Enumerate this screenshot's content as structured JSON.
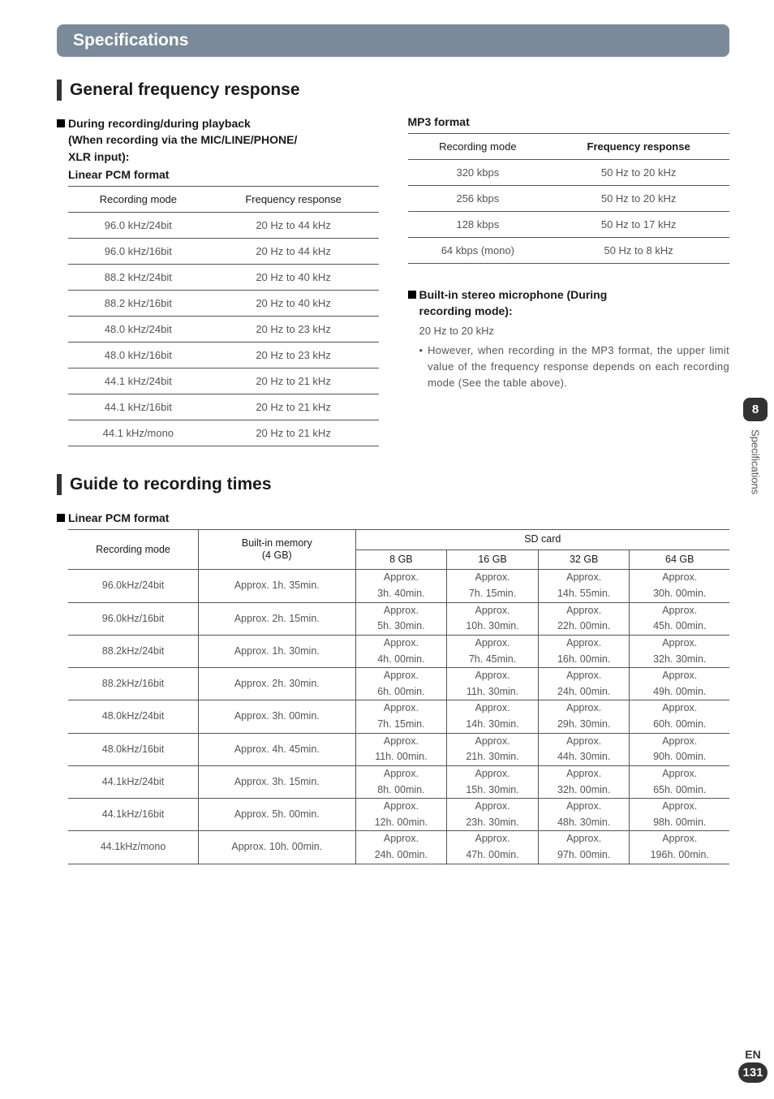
{
  "chapter": {
    "title": "Specifications"
  },
  "side": {
    "num": "8",
    "label": "Specifications"
  },
  "footer": {
    "lang": "EN",
    "page": "131"
  },
  "section1": {
    "title": "General frequency response",
    "left": {
      "heading_lines": [
        "During recording/during playback",
        "(When recording via the MIC/LINE/PHONE/",
        "XLR input):"
      ],
      "sub_title": "Linear PCM format",
      "table": {
        "headers": [
          "Recording mode",
          "Frequency response"
        ],
        "rows": [
          [
            "96.0 kHz/24bit",
            "20 Hz to 44 kHz"
          ],
          [
            "96.0 kHz/16bit",
            "20 Hz to 44 kHz"
          ],
          [
            "88.2 kHz/24bit",
            "20 Hz to 40 kHz"
          ],
          [
            "88.2 kHz/16bit",
            "20 Hz to 40 kHz"
          ],
          [
            "48.0 kHz/24bit",
            "20 Hz to 23 kHz"
          ],
          [
            "48.0 kHz/16bit",
            "20 Hz to 23 kHz"
          ],
          [
            "44.1 kHz/24bit",
            "20 Hz to 21 kHz"
          ],
          [
            "44.1 kHz/16bit",
            "20 Hz to 21 kHz"
          ],
          [
            "44.1 kHz/mono",
            "20 Hz to 21 kHz"
          ]
        ]
      }
    },
    "right": {
      "mp3_title": "MP3 format",
      "mp3_table": {
        "headers": [
          "Recording mode",
          "Frequency response"
        ],
        "rows": [
          [
            "320 kbps",
            "50 Hz to 20 kHz"
          ],
          [
            "256 kbps",
            "50 Hz to 20 kHz"
          ],
          [
            "128 kbps",
            "50 Hz to 17 kHz"
          ],
          [
            "64 kbps (mono)",
            "50 Hz to 8 kHz"
          ]
        ]
      },
      "mic_heading_lines": [
        "Built-in stereo microphone (During",
        "recording mode):"
      ],
      "mic_range": "20 Hz to 20 kHz",
      "mic_note": "However, when recording in the MP3 format, the upper limit value of the frequency response depends on each recording mode (See the table above)."
    }
  },
  "section2": {
    "title": "Guide to recording times",
    "sub_title": "Linear PCM format",
    "table": {
      "row_header": "Recording mode",
      "builtin_header_l1": "Built-in memory",
      "builtin_header_l2": "(4 GB)",
      "sd_header": "SD card",
      "sd_cols": [
        "8 GB",
        "16 GB",
        "32 GB",
        "64 GB"
      ],
      "rows": [
        {
          "mode": "96.0kHz/24bit",
          "builtin": "Approx. 1h. 35min.",
          "sd": [
            "Approx.\n3h. 40min.",
            "Approx.\n7h. 15min.",
            "Approx.\n14h. 55min.",
            "Approx.\n30h. 00min."
          ]
        },
        {
          "mode": "96.0kHz/16bit",
          "builtin": "Approx. 2h. 15min.",
          "sd": [
            "Approx.\n5h. 30min.",
            "Approx.\n10h. 30min.",
            "Approx.\n22h. 00min.",
            "Approx.\n45h. 00min."
          ]
        },
        {
          "mode": "88.2kHz/24bit",
          "builtin": "Approx. 1h. 30min.",
          "sd": [
            "Approx.\n4h. 00min.",
            "Approx.\n7h. 45min.",
            "Approx.\n16h. 00min.",
            "Approx.\n32h. 30min."
          ]
        },
        {
          "mode": "88.2kHz/16bit",
          "builtin": "Approx. 2h. 30min.",
          "sd": [
            "Approx.\n6h. 00min.",
            "Approx.\n11h. 30min.",
            "Approx.\n24h. 00min.",
            "Approx.\n49h. 00min."
          ]
        },
        {
          "mode": "48.0kHz/24bit",
          "builtin": "Approx. 3h. 00min.",
          "sd": [
            "Approx.\n7h. 15min.",
            "Approx.\n14h. 30min.",
            "Approx.\n29h. 30min.",
            "Approx.\n60h. 00min."
          ]
        },
        {
          "mode": "48.0kHz/16bit",
          "builtin": "Approx. 4h. 45min.",
          "sd": [
            "Approx.\n11h. 00min.",
            "Approx.\n21h. 30min.",
            "Approx.\n44h. 30min.",
            "Approx.\n90h. 00min."
          ]
        },
        {
          "mode": "44.1kHz/24bit",
          "builtin": "Approx. 3h. 15min.",
          "sd": [
            "Approx.\n8h. 00min.",
            "Approx.\n15h. 30min.",
            "Approx.\n32h. 00min.",
            "Approx.\n65h. 00min."
          ]
        },
        {
          "mode": "44.1kHz/16bit",
          "builtin": "Approx. 5h. 00min.",
          "sd": [
            "Approx.\n12h. 00min.",
            "Approx.\n23h. 30min.",
            "Approx.\n48h. 30min.",
            "Approx.\n98h. 00min."
          ]
        },
        {
          "mode": "44.1kHz/mono",
          "builtin": "Approx. 10h. 00min.",
          "sd": [
            "Approx.\n24h. 00min.",
            "Approx.\n47h. 00min.",
            "Approx.\n97h. 00min.",
            "Approx.\n196h. 00min."
          ]
        }
      ]
    }
  }
}
